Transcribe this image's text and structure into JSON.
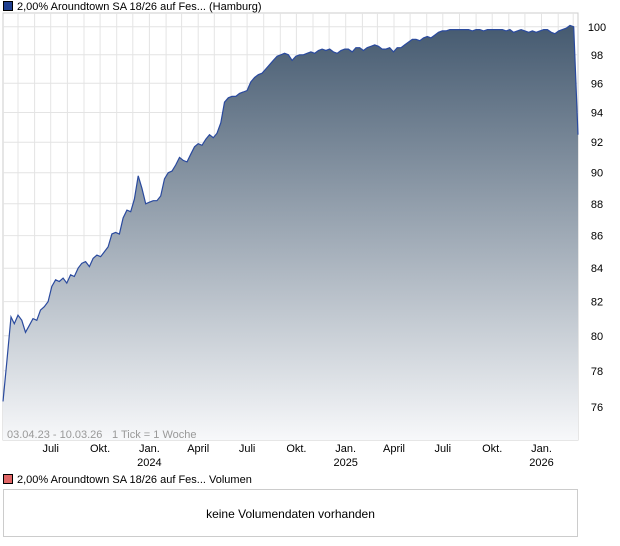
{
  "legend_price": {
    "label": "2,00% Aroundtown SA 18/26 auf Fes... (Hamburg)",
    "color": "#1f3f8f"
  },
  "legend_volume": {
    "label": "2,00% Aroundtown SA 18/26 auf Fes... Volumen",
    "color": "#e06666"
  },
  "chart_info": {
    "range_label": "03.04.23 - 10.03.26",
    "tick_label": "1 Tick = 1 Woche"
  },
  "volume_panel": {
    "message": "keine Volumendaten vorhanden"
  },
  "chart_data": {
    "type": "area",
    "title": "",
    "xlabel": "",
    "ylabel": "",
    "y_scale": "log",
    "ylim": [
      74.2,
      101.0
    ],
    "yticks": [
      76,
      78,
      80,
      82,
      84,
      86,
      88,
      90,
      92,
      94,
      96,
      98,
      100
    ],
    "xlim": [
      "2023-04-03",
      "2026-03-10"
    ],
    "xticks": [
      {
        "date": "2023-07-01",
        "label": "Juli",
        "sub": ""
      },
      {
        "date": "2023-10-01",
        "label": "Okt.",
        "sub": ""
      },
      {
        "date": "2024-01-01",
        "label": "Jan.",
        "sub": "2024"
      },
      {
        "date": "2024-04-01",
        "label": "April",
        "sub": ""
      },
      {
        "date": "2024-07-01",
        "label": "Juli",
        "sub": ""
      },
      {
        "date": "2024-10-01",
        "label": "Okt.",
        "sub": ""
      },
      {
        "date": "2025-01-01",
        "label": "Jan.",
        "sub": "2025"
      },
      {
        "date": "2025-04-01",
        "label": "April",
        "sub": ""
      },
      {
        "date": "2025-07-01",
        "label": "Juli",
        "sub": ""
      },
      {
        "date": "2025-10-01",
        "label": "Okt.",
        "sub": ""
      },
      {
        "date": "2026-01-01",
        "label": "Jan.",
        "sub": "2026"
      }
    ],
    "grid": true,
    "fill_gradient": [
      "#455a70",
      "#f7f8fa"
    ],
    "line_color": "#2a4a9e",
    "series": [
      {
        "points": [
          [
            "2023-04-03",
            76.3
          ],
          [
            "2023-04-10",
            78.5
          ],
          [
            "2023-04-18",
            81.1
          ],
          [
            "2023-04-24",
            80.7
          ],
          [
            "2023-05-01",
            81.2
          ],
          [
            "2023-05-08",
            80.9
          ],
          [
            "2023-05-15",
            80.2
          ],
          [
            "2023-05-22",
            80.6
          ],
          [
            "2023-05-29",
            81.0
          ],
          [
            "2023-06-05",
            80.9
          ],
          [
            "2023-06-12",
            81.5
          ],
          [
            "2023-06-19",
            81.7
          ],
          [
            "2023-06-26",
            82.0
          ],
          [
            "2023-07-03",
            82.9
          ],
          [
            "2023-07-10",
            83.3
          ],
          [
            "2023-07-17",
            83.2
          ],
          [
            "2023-07-24",
            83.4
          ],
          [
            "2023-07-31",
            83.1
          ],
          [
            "2023-08-07",
            83.6
          ],
          [
            "2023-08-14",
            83.5
          ],
          [
            "2023-08-21",
            84.0
          ],
          [
            "2023-08-28",
            84.3
          ],
          [
            "2023-09-04",
            84.4
          ],
          [
            "2023-09-11",
            84.1
          ],
          [
            "2023-09-18",
            84.6
          ],
          [
            "2023-09-25",
            84.8
          ],
          [
            "2023-10-02",
            84.7
          ],
          [
            "2023-10-09",
            85.0
          ],
          [
            "2023-10-16",
            85.3
          ],
          [
            "2023-10-23",
            86.1
          ],
          [
            "2023-10-30",
            86.2
          ],
          [
            "2023-11-06",
            86.1
          ],
          [
            "2023-11-13",
            87.1
          ],
          [
            "2023-11-20",
            87.6
          ],
          [
            "2023-11-27",
            87.5
          ],
          [
            "2023-12-04",
            88.3
          ],
          [
            "2023-12-11",
            89.8
          ],
          [
            "2023-12-18",
            89.0
          ],
          [
            "2023-12-25",
            88.0
          ],
          [
            "2024-01-01",
            88.1
          ],
          [
            "2024-01-08",
            88.2
          ],
          [
            "2024-01-15",
            88.2
          ],
          [
            "2024-01-22",
            88.5
          ],
          [
            "2024-01-29",
            89.6
          ],
          [
            "2024-02-05",
            90.0
          ],
          [
            "2024-02-12",
            90.1
          ],
          [
            "2024-02-19",
            90.5
          ],
          [
            "2024-02-26",
            91.0
          ],
          [
            "2024-03-04",
            90.8
          ],
          [
            "2024-03-11",
            90.7
          ],
          [
            "2024-03-18",
            91.2
          ],
          [
            "2024-03-25",
            91.7
          ],
          [
            "2024-04-01",
            91.9
          ],
          [
            "2024-04-08",
            91.8
          ],
          [
            "2024-04-15",
            92.2
          ],
          [
            "2024-04-22",
            92.5
          ],
          [
            "2024-04-29",
            92.3
          ],
          [
            "2024-05-06",
            92.6
          ],
          [
            "2024-05-13",
            93.3
          ],
          [
            "2024-05-20",
            94.7
          ],
          [
            "2024-05-27",
            95.0
          ],
          [
            "2024-06-03",
            95.1
          ],
          [
            "2024-06-10",
            95.1
          ],
          [
            "2024-06-17",
            95.3
          ],
          [
            "2024-06-24",
            95.4
          ],
          [
            "2024-07-01",
            95.5
          ],
          [
            "2024-07-08",
            96.1
          ],
          [
            "2024-07-15",
            96.4
          ],
          [
            "2024-07-22",
            96.6
          ],
          [
            "2024-07-29",
            96.7
          ],
          [
            "2024-08-05",
            97.0
          ],
          [
            "2024-08-12",
            97.3
          ],
          [
            "2024-08-19",
            97.6
          ],
          [
            "2024-08-26",
            97.9
          ],
          [
            "2024-09-02",
            98.0
          ],
          [
            "2024-09-09",
            98.1
          ],
          [
            "2024-09-16",
            98.0
          ],
          [
            "2024-09-23",
            97.6
          ],
          [
            "2024-09-30",
            97.9
          ],
          [
            "2024-10-07",
            98.0
          ],
          [
            "2024-10-14",
            98.0
          ],
          [
            "2024-10-21",
            98.1
          ],
          [
            "2024-10-28",
            98.2
          ],
          [
            "2024-11-04",
            98.1
          ],
          [
            "2024-11-11",
            98.3
          ],
          [
            "2024-11-18",
            98.4
          ],
          [
            "2024-11-25",
            98.3
          ],
          [
            "2024-12-02",
            98.4
          ],
          [
            "2024-12-09",
            98.2
          ],
          [
            "2024-12-16",
            98.1
          ],
          [
            "2024-12-23",
            98.3
          ],
          [
            "2024-12-30",
            98.4
          ],
          [
            "2025-01-06",
            98.4
          ],
          [
            "2025-01-13",
            98.2
          ],
          [
            "2025-01-20",
            98.5
          ],
          [
            "2025-01-27",
            98.5
          ],
          [
            "2025-02-03",
            98.3
          ],
          [
            "2025-02-10",
            98.5
          ],
          [
            "2025-02-17",
            98.6
          ],
          [
            "2025-02-24",
            98.7
          ],
          [
            "2025-03-03",
            98.6
          ],
          [
            "2025-03-10",
            98.4
          ],
          [
            "2025-03-17",
            98.4
          ],
          [
            "2025-03-24",
            98.5
          ],
          [
            "2025-03-31",
            98.2
          ],
          [
            "2025-04-07",
            98.5
          ],
          [
            "2025-04-14",
            98.5
          ],
          [
            "2025-04-21",
            98.7
          ],
          [
            "2025-04-28",
            98.9
          ],
          [
            "2025-05-05",
            99.1
          ],
          [
            "2025-05-12",
            99.1
          ],
          [
            "2025-05-19",
            99.0
          ],
          [
            "2025-05-26",
            99.2
          ],
          [
            "2025-06-02",
            99.3
          ],
          [
            "2025-06-09",
            99.2
          ],
          [
            "2025-06-16",
            99.4
          ],
          [
            "2025-06-23",
            99.6
          ],
          [
            "2025-06-30",
            99.7
          ],
          [
            "2025-07-07",
            99.7
          ],
          [
            "2025-07-14",
            99.8
          ],
          [
            "2025-07-21",
            99.8
          ],
          [
            "2025-07-28",
            99.8
          ],
          [
            "2025-08-04",
            99.8
          ],
          [
            "2025-08-11",
            99.8
          ],
          [
            "2025-08-18",
            99.8
          ],
          [
            "2025-08-25",
            99.7
          ],
          [
            "2025-09-01",
            99.8
          ],
          [
            "2025-09-08",
            99.8
          ],
          [
            "2025-09-15",
            99.7
          ],
          [
            "2025-09-22",
            99.8
          ],
          [
            "2025-09-29",
            99.8
          ],
          [
            "2025-10-06",
            99.8
          ],
          [
            "2025-10-13",
            99.8
          ],
          [
            "2025-10-20",
            99.8
          ],
          [
            "2025-10-27",
            99.7
          ],
          [
            "2025-11-03",
            99.8
          ],
          [
            "2025-11-10",
            99.6
          ],
          [
            "2025-11-17",
            99.7
          ],
          [
            "2025-11-24",
            99.8
          ],
          [
            "2025-12-01",
            99.7
          ],
          [
            "2025-12-08",
            99.6
          ],
          [
            "2025-12-15",
            99.7
          ],
          [
            "2025-12-22",
            99.6
          ],
          [
            "2025-12-29",
            99.7
          ],
          [
            "2026-01-05",
            99.8
          ],
          [
            "2026-01-12",
            99.8
          ],
          [
            "2026-01-19",
            99.6
          ],
          [
            "2026-01-26",
            99.5
          ],
          [
            "2026-02-02",
            99.7
          ],
          [
            "2026-02-09",
            99.8
          ],
          [
            "2026-02-16",
            99.9
          ],
          [
            "2026-02-23",
            100.1
          ],
          [
            "2026-03-02",
            100.0
          ],
          [
            "2026-03-10",
            92.5
          ]
        ]
      }
    ]
  }
}
